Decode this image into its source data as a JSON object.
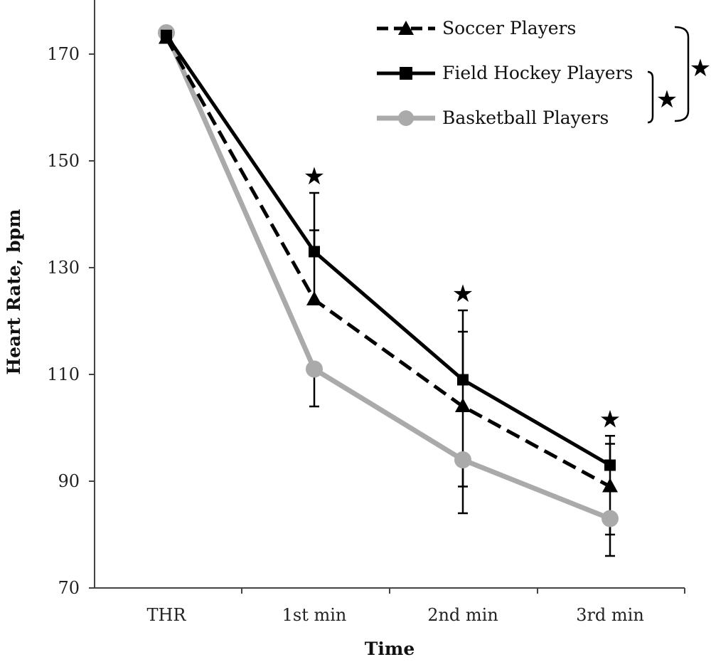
{
  "chart_data": {
    "type": "line",
    "title": "",
    "xlabel": "Time",
    "ylabel": "Heart Rate, bpm",
    "categories": [
      "THR",
      "1st min",
      "2nd min",
      "3rd min"
    ],
    "ylim": [
      70,
      180
    ],
    "yticks": [
      70,
      90,
      110,
      130,
      150,
      170
    ],
    "grid": false,
    "legend_position": "top-right",
    "series": [
      {
        "name": "Soccer Players",
        "values": [
          173,
          124,
          104,
          89
        ],
        "error_upper": [
          null,
          137,
          118,
          97
        ],
        "error_lower": [
          null,
          null,
          89,
          80
        ],
        "color": "#000000",
        "line_style": "dashed",
        "marker": "triangle"
      },
      {
        "name": "Field Hockey Players",
        "values": [
          173.5,
          133,
          109,
          93
        ],
        "error_upper": [
          null,
          144,
          122,
          98.5
        ],
        "error_lower": [
          null,
          null,
          null,
          null
        ],
        "color": "#000000",
        "line_style": "solid",
        "marker": "square"
      },
      {
        "name": "Basketball Players",
        "values": [
          174,
          111,
          94,
          83
        ],
        "error_upper": [
          null,
          null,
          null,
          null
        ],
        "error_lower": [
          null,
          104,
          84,
          76
        ],
        "color": "#aaaaaa",
        "line_style": "solid",
        "marker": "circle"
      }
    ],
    "significance_markers": [
      {
        "category": "1st min",
        "symbol": "★"
      },
      {
        "category": "2nd min",
        "symbol": "★"
      },
      {
        "category": "3rd min",
        "symbol": "★"
      }
    ],
    "bracket_markers": [
      {
        "spans": [
          "Field Hockey Players",
          "Basketball Players"
        ],
        "symbol": "★"
      },
      {
        "spans": [
          "Soccer Players",
          "Basketball Players"
        ],
        "symbol": "★"
      }
    ]
  }
}
